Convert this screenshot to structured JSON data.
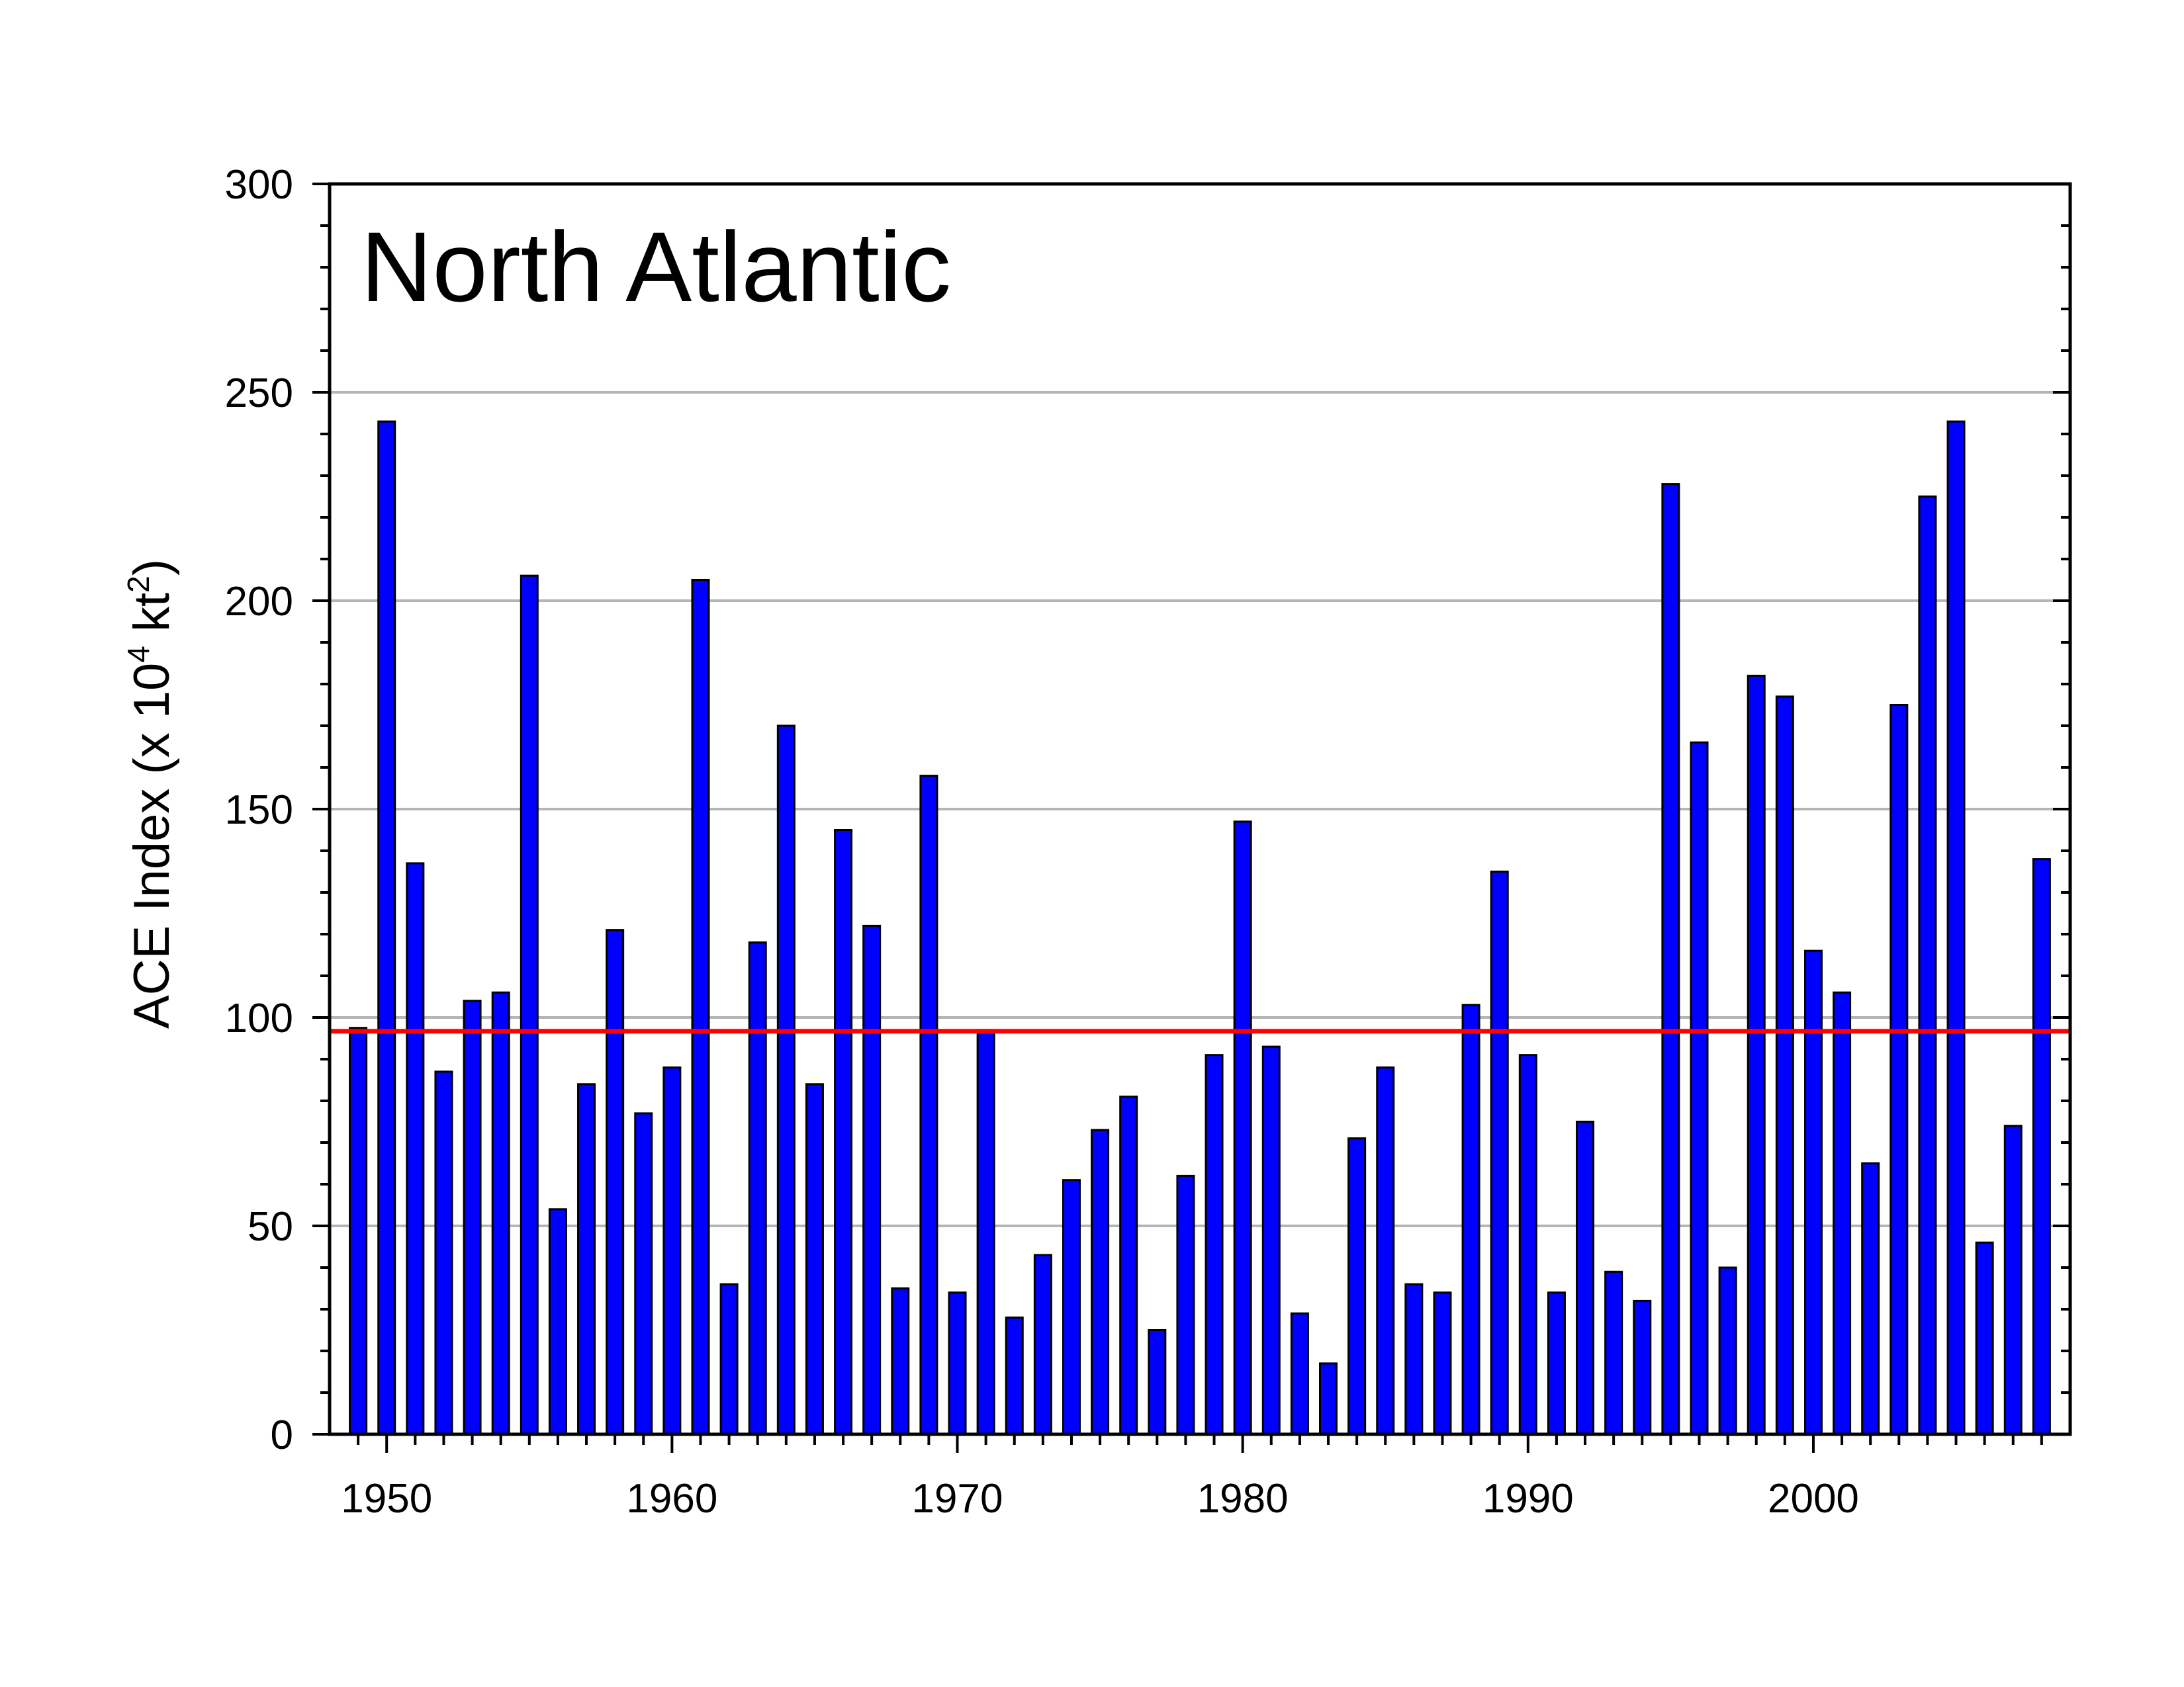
{
  "chart_data": {
    "type": "bar",
    "title": "North Atlantic",
    "ylabel": {
      "prefix": "ACE Index (x 10",
      "sup1": "4",
      "middle": " kt",
      "sup2": "2",
      "suffix": ")"
    },
    "xlabel": "",
    "ylim": [
      0,
      300
    ],
    "yticks": [
      0,
      50,
      100,
      150,
      200,
      250,
      300
    ],
    "xlim": [
      1948,
      2009
    ],
    "xticks": [
      1950,
      1960,
      1970,
      1980,
      1990,
      2000
    ],
    "grid": true,
    "grid_values": [
      50,
      100,
      150,
      200,
      250
    ],
    "reference_line": 96.7,
    "colors": {
      "bar": "#0000ff",
      "bar_edge": "#000000",
      "reference_line": "#ff0000",
      "grid": "#b5b5b5"
    },
    "years": [
      1949,
      1950,
      1951,
      1952,
      1953,
      1954,
      1955,
      1956,
      1957,
      1958,
      1959,
      1960,
      1961,
      1962,
      1963,
      1964,
      1965,
      1966,
      1967,
      1968,
      1969,
      1970,
      1971,
      1972,
      1973,
      1974,
      1975,
      1976,
      1977,
      1978,
      1979,
      1980,
      1981,
      1982,
      1983,
      1984,
      1985,
      1986,
      1987,
      1988,
      1989,
      1990,
      1991,
      1992,
      1993,
      1994,
      1995,
      1996,
      1997,
      1998,
      1999,
      2000,
      2001,
      2002,
      2003,
      2004,
      2005,
      2006,
      2007,
      2008
    ],
    "values": [
      97.5,
      243,
      137,
      87,
      104,
      106,
      206,
      54,
      84,
      121,
      77,
      88,
      205,
      36,
      118,
      170,
      84,
      145,
      122,
      35,
      158,
      34,
      97,
      28,
      43,
      61,
      73,
      81,
      25,
      62,
      91,
      147,
      93,
      29,
      17,
      71,
      88,
      36,
      34,
      103,
      135,
      91,
      34,
      75,
      39,
      32,
      228,
      166,
      40,
      182,
      177,
      116,
      106,
      65,
      175,
      225,
      243,
      46,
      74,
      138
    ]
  }
}
